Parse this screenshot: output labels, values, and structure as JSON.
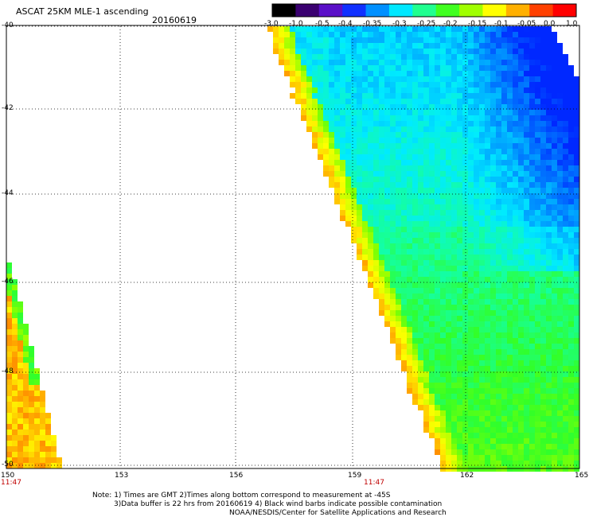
{
  "header": {
    "title": "ASCAT 25KM MLE-1 ascending",
    "date": "20160619"
  },
  "colorbar": {
    "labels": [
      "-3.0",
      "-1.0",
      "-0.5",
      "-0.4",
      "-0.35",
      "-0.3",
      "-0.25",
      "-0.2",
      "-0.15",
      "-0.1",
      "-0.05",
      "0.0",
      "1.0"
    ],
    "colors": [
      "#000000",
      "#3a0070",
      "#5a10c8",
      "#1030ff",
      "#0090ff",
      "#00e8ff",
      "#20ff90",
      "#40ff20",
      "#a0ff00",
      "#ffff00",
      "#ffb000",
      "#ff4000",
      "#ff0000"
    ]
  },
  "axes": {
    "lat_labels": [
      "-40",
      "-42",
      "-44",
      "-46",
      "-48",
      "-50"
    ],
    "lon_labels": [
      "150",
      "153",
      "156",
      "159",
      "162",
      "165"
    ],
    "time_labels": [
      "11:47",
      "11:47"
    ]
  },
  "notes": {
    "line1": "Note: 1) Times are GMT 2)Times along bottom correspond to measurement at -45S",
    "line2": "3)Data buffer is 22 hrs from 20160619 4) Black wind barbs indicate possible contamination",
    "line3": "NOAA/NESDIS/Center for Satellite Applications and Research"
  }
}
